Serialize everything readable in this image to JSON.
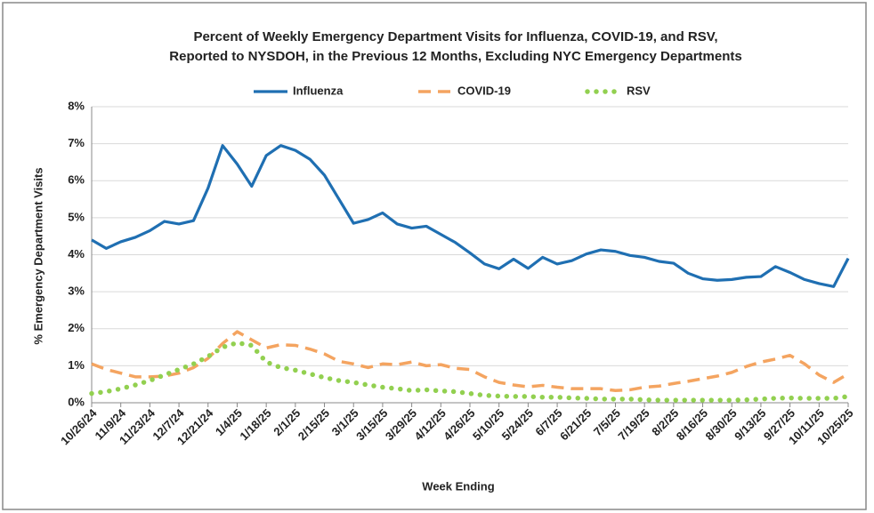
{
  "chart_data": {
    "type": "line",
    "title": [
      "Percent of Weekly Emergency Department Visits for Influenza, COVID-19, and RSV,",
      "Reported to NYSDOH, in the Previous 12 Months, Excluding NYC Emergency Departments"
    ],
    "y_label": "% Emergency Department Visits",
    "x_label": "Week Ending",
    "categories": [
      "10/26/24",
      null,
      "11/9/24",
      null,
      "11/23/24",
      null,
      "12/7/24",
      null,
      "12/21/24",
      null,
      "1/4/25",
      null,
      "1/18/25",
      null,
      "2/1/25",
      null,
      "2/15/25",
      null,
      "3/1/25",
      null,
      "3/15/25",
      null,
      "3/29/25",
      null,
      "4/12/25",
      null,
      "4/26/25",
      null,
      "5/10/25",
      null,
      "5/24/25",
      null,
      "6/7/25",
      null,
      "6/21/25",
      null,
      "7/5/25",
      null,
      "7/19/25",
      null,
      "8/2/25",
      null,
      "8/16/25",
      null,
      "8/30/25",
      null,
      "9/13/25",
      null,
      "9/27/25",
      null,
      "10/11/25",
      null,
      "10/25/25"
    ],
    "series": [
      {
        "name": "Influenza",
        "color": "#1f6fb2",
        "style": "solid",
        "values": [
          4.4,
          4.17,
          4.35,
          4.47,
          4.65,
          4.9,
          4.83,
          4.92,
          5.8,
          6.95,
          6.45,
          5.85,
          6.68,
          6.95,
          6.82,
          6.58,
          6.15,
          5.5,
          4.85,
          4.95,
          5.13,
          4.83,
          4.72,
          4.77,
          4.55,
          4.33,
          4.05,
          3.75,
          3.62,
          3.88,
          3.63,
          3.93,
          3.75,
          3.84,
          4.02,
          4.13,
          4.09,
          3.98,
          3.93,
          3.82,
          3.77,
          3.5,
          3.35,
          3.31,
          3.33,
          3.39,
          3.41,
          3.68,
          3.52,
          3.33,
          3.22,
          3.14,
          3.9
        ]
      },
      {
        "name": "COVID-19",
        "color": "#f4a460",
        "style": "dashed",
        "values": [
          1.05,
          0.9,
          0.8,
          0.7,
          0.7,
          0.72,
          0.8,
          0.95,
          1.2,
          1.6,
          1.92,
          1.7,
          1.48,
          1.57,
          1.55,
          1.45,
          1.32,
          1.12,
          1.05,
          0.95,
          1.05,
          1.03,
          1.1,
          1.0,
          1.03,
          0.93,
          0.9,
          0.7,
          0.55,
          0.48,
          0.43,
          0.47,
          0.42,
          0.38,
          0.38,
          0.38,
          0.33,
          0.35,
          0.42,
          0.45,
          0.52,
          0.58,
          0.65,
          0.72,
          0.82,
          0.98,
          1.1,
          1.18,
          1.28,
          1.05,
          0.75,
          0.55,
          0.78
        ]
      },
      {
        "name": "RSV",
        "color": "#92d050",
        "style": "dotted",
        "values": [
          0.25,
          0.3,
          0.38,
          0.48,
          0.6,
          0.75,
          0.9,
          1.05,
          1.25,
          1.5,
          1.62,
          1.55,
          1.1,
          0.95,
          0.88,
          0.78,
          0.68,
          0.6,
          0.55,
          0.48,
          0.42,
          0.38,
          0.33,
          0.35,
          0.32,
          0.3,
          0.25,
          0.2,
          0.18,
          0.17,
          0.17,
          0.15,
          0.15,
          0.13,
          0.12,
          0.1,
          0.1,
          0.1,
          0.08,
          0.07,
          0.07,
          0.07,
          0.07,
          0.07,
          0.07,
          0.08,
          0.1,
          0.12,
          0.13,
          0.12,
          0.12,
          0.12,
          0.17
        ]
      }
    ],
    "ylim": [
      0,
      8
    ],
    "yticks": [
      {
        "value": 0,
        "label": "0%"
      },
      {
        "value": 1,
        "label": "1%"
      },
      {
        "value": 2,
        "label": "2%"
      },
      {
        "value": 3,
        "label": "3%"
      },
      {
        "value": 4,
        "label": "4%"
      },
      {
        "value": 5,
        "label": "5%"
      },
      {
        "value": 6,
        "label": "6%"
      },
      {
        "value": 7,
        "label": "7%"
      },
      {
        "value": 8,
        "label": "8%"
      }
    ],
    "grid": true,
    "legend": "top"
  }
}
